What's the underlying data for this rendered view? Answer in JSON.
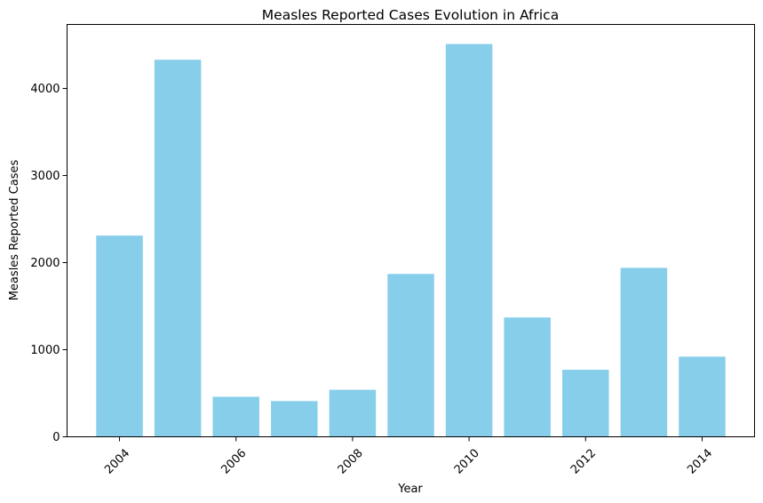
{
  "chart_data": {
    "type": "bar",
    "title": "Measles Reported Cases Evolution in Africa",
    "xlabel": "Year",
    "ylabel": "Measles Reported Cases",
    "x": [
      2004,
      2005,
      2006,
      2007,
      2008,
      2009,
      2010,
      2011,
      2012,
      2013,
      2014
    ],
    "values": [
      2310,
      4330,
      460,
      410,
      540,
      1870,
      4510,
      1370,
      770,
      1940,
      920
    ],
    "xticks": [
      "2004",
      "2006",
      "2008",
      "2010",
      "2012",
      "2014"
    ],
    "yticks": [
      "0",
      "1000",
      "2000",
      "3000",
      "4000"
    ],
    "xlim": [
      2003.1,
      2014.9
    ],
    "ylim": [
      0,
      4735
    ],
    "bar_color": "#87CEEB",
    "grid": false,
    "legend": "none",
    "xtick_rotation": "45 degrees"
  }
}
